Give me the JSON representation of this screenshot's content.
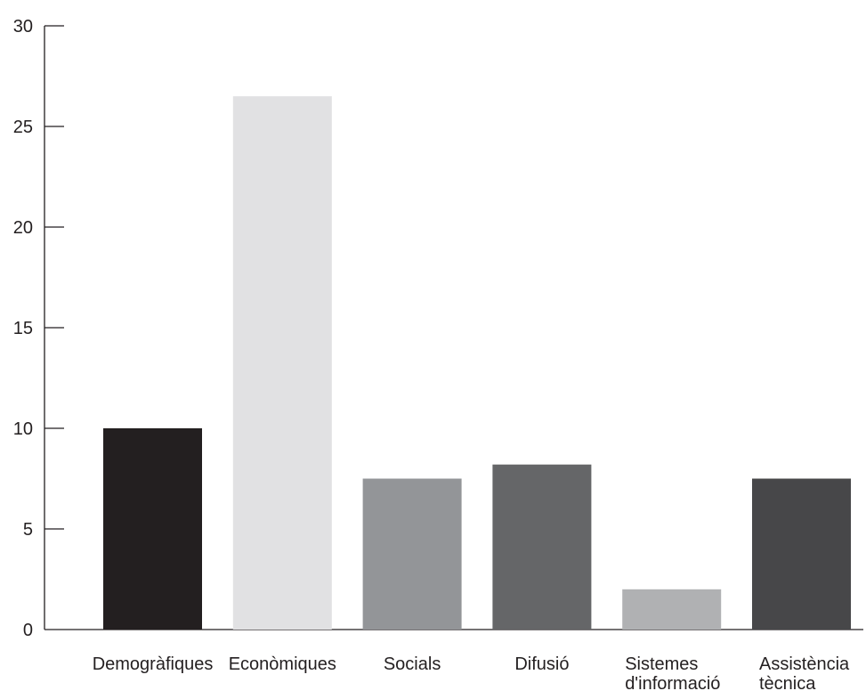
{
  "chart_data": {
    "type": "bar",
    "title": "",
    "xlabel": "",
    "ylabel": "",
    "ylim": [
      0,
      30
    ],
    "yticks": [
      0,
      5,
      10,
      15,
      20,
      25,
      30
    ],
    "grid": false,
    "legend": "none",
    "categories": [
      [
        "Demogràfiques"
      ],
      [
        "Econòmiques"
      ],
      [
        "Socials"
      ],
      [
        "Difusió"
      ],
      [
        "Sistemes",
        "d'informació"
      ],
      [
        "Assistència",
        "tècnica"
      ]
    ],
    "values": [
      10,
      26.5,
      7.5,
      8.2,
      2,
      7.5
    ],
    "colors": [
      "#231f20",
      "#e1e1e3",
      "#939598",
      "#656668",
      "#b0b1b3",
      "#474749"
    ]
  }
}
